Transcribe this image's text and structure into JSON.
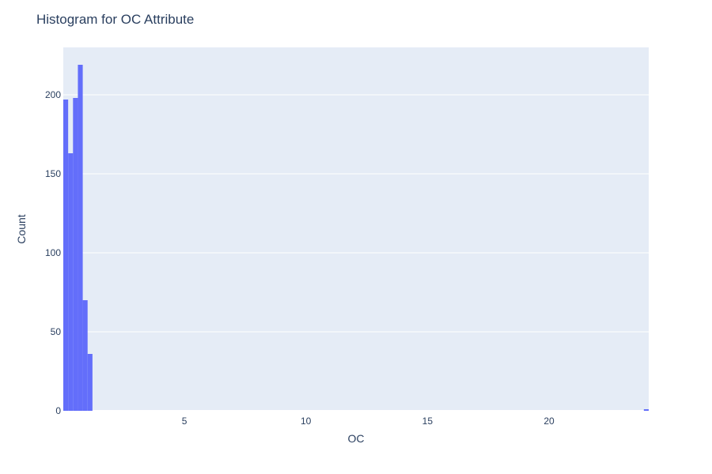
{
  "chart_data": {
    "type": "bar",
    "title": "Histogram for OC Attribute",
    "xlabel": "OC",
    "ylabel": "Count",
    "xlim": [
      0.02,
      24.1
    ],
    "ylim": [
      0,
      230
    ],
    "x_ticks": [
      5,
      10,
      15,
      20
    ],
    "y_ticks": [
      0,
      50,
      100,
      150,
      200
    ],
    "grid": true,
    "bar_color": "#636efa",
    "plot_bg": "#e5ecf6",
    "bins": [
      {
        "x0": 0.02,
        "x1": 0.22,
        "count": 197
      },
      {
        "x0": 0.22,
        "x1": 0.42,
        "count": 163
      },
      {
        "x0": 0.42,
        "x1": 0.62,
        "count": 198
      },
      {
        "x0": 0.62,
        "x1": 0.82,
        "count": 219
      },
      {
        "x0": 0.82,
        "x1": 1.02,
        "count": 70
      },
      {
        "x0": 1.02,
        "x1": 1.22,
        "count": 36
      },
      {
        "x0": 23.9,
        "x1": 24.1,
        "count": 1
      }
    ]
  }
}
